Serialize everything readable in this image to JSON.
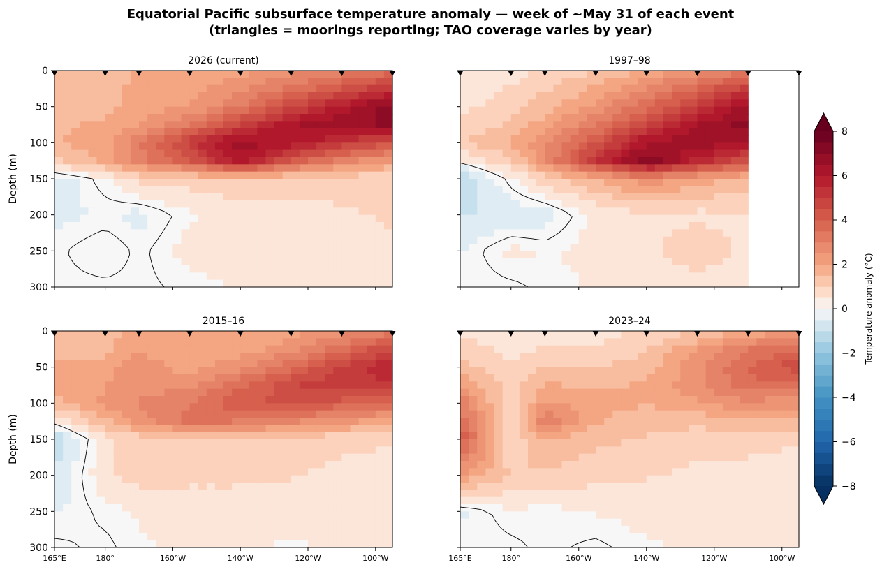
{
  "figure": {
    "title_line1": "Equatorial Pacific subsurface temperature anomaly — week of ~May 31 of each event",
    "title_line2": "(triangles = moorings reporting; TAO coverage varies by year)"
  },
  "chart_data": [
    {
      "type": "heatmap",
      "title": "2026 (current)",
      "xlabel": "",
      "ylabel": "Depth (m)",
      "x_ticks": [
        "165°E",
        "180°",
        "160°W",
        "140°W",
        "120°W",
        "100°W"
      ],
      "y_ticks": [
        "0",
        "50",
        "100",
        "150",
        "200",
        "250",
        "300"
      ],
      "xlim": [
        "165°E",
        "95°W"
      ],
      "ylim": [
        300,
        0
      ],
      "moorings_lon_e": [
        165,
        180,
        190,
        205,
        220,
        235,
        250,
        265
      ],
      "grid": {
        "lon_e": [
          165,
          180,
          190,
          205,
          220,
          235,
          250,
          265
        ],
        "depth_m": [
          0,
          25,
          50,
          75,
          100,
          125,
          150,
          200,
          250,
          300
        ],
        "anomaly_c": [
          [
            1.5,
            1.5,
            1.8,
            1.8,
            2.0,
            2.6,
            3.0,
            3.5
          ],
          [
            1.5,
            1.6,
            1.9,
            2.1,
            2.6,
            3.4,
            4.2,
            5.2
          ],
          [
            1.6,
            1.6,
            1.9,
            2.3,
            3.2,
            4.6,
            6.0,
            7.2
          ],
          [
            1.7,
            1.8,
            2.2,
            3.2,
            4.8,
            6.2,
            6.6,
            6.8
          ],
          [
            1.7,
            2.0,
            3.2,
            5.0,
            6.6,
            6.2,
            5.2,
            4.4
          ],
          [
            1.2,
            1.8,
            3.0,
            4.2,
            6.2,
            4.2,
            3.0,
            2.2
          ],
          [
            -0.6,
            0.2,
            0.9,
            1.0,
            1.2,
            1.0,
            0.9,
            0.8
          ],
          [
            -0.4,
            -0.2,
            -0.4,
            0.2,
            0.5,
            0.5,
            0.7,
            0.8
          ],
          [
            -0.1,
            0.3,
            -0.1,
            0.4,
            0.5,
            0.5,
            0.6,
            0.7
          ],
          [
            -0.1,
            -0.1,
            -0.1,
            0.1,
            0.3,
            0.4,
            0.5,
            0.6
          ]
        ]
      }
    },
    {
      "type": "heatmap",
      "title": "1997–98",
      "xlabel": "",
      "ylabel": "",
      "x_ticks": [
        "165°E",
        "180°",
        "160°W",
        "140°W",
        "120°W",
        "100°W"
      ],
      "y_ticks": [
        "0",
        "50",
        "100",
        "150",
        "200",
        "250",
        "300"
      ],
      "xlim": [
        "165°E",
        "95°W"
      ],
      "ylim": [
        300,
        0
      ],
      "moorings_lon_e": [
        165,
        180,
        190,
        205,
        220,
        235,
        250,
        265
      ],
      "data_extent_lon_e": [
        165,
        250
      ],
      "grid": {
        "lon_e": [
          165,
          180,
          190,
          205,
          220,
          235,
          250
        ],
        "depth_m": [
          0,
          25,
          50,
          75,
          100,
          125,
          150,
          200,
          250,
          300
        ],
        "anomaly_c": [
          [
            0.2,
            0.5,
            0.8,
            1.2,
            1.8,
            2.5,
            3.2
          ],
          [
            0.4,
            0.8,
            1.2,
            1.8,
            2.8,
            3.8,
            5.0
          ],
          [
            0.6,
            1.0,
            1.5,
            2.4,
            3.6,
            5.0,
            6.5
          ],
          [
            0.8,
            1.4,
            2.0,
            3.2,
            4.8,
            6.2,
            7.0
          ],
          [
            1.2,
            1.8,
            2.6,
            4.2,
            6.2,
            6.6,
            6.2
          ],
          [
            0.2,
            1.2,
            2.6,
            5.2,
            7.2,
            5.6,
            4.4
          ],
          [
            -1.4,
            0.2,
            1.0,
            1.8,
            2.6,
            2.0,
            1.6
          ],
          [
            -0.8,
            -0.6,
            -0.5,
            0.4,
            0.7,
            0.6,
            0.7
          ],
          [
            -0.3,
            0.4,
            0.2,
            0.4,
            0.5,
            1.2,
            0.5
          ],
          [
            -0.2,
            -0.1,
            0.1,
            0.3,
            0.4,
            0.4,
            0.4
          ]
        ]
      }
    },
    {
      "type": "heatmap",
      "title": "2015–16",
      "xlabel": "",
      "ylabel": "Depth (m)",
      "x_ticks": [
        "165°E",
        "180°",
        "160°W",
        "140°W",
        "120°W",
        "100°W"
      ],
      "y_ticks": [
        "0",
        "50",
        "100",
        "150",
        "200",
        "250",
        "300"
      ],
      "xlim": [
        "165°E",
        "95°W"
      ],
      "ylim": [
        300,
        0
      ],
      "moorings_lon_e": [
        165,
        180,
        190,
        205,
        220,
        235,
        250,
        265
      ],
      "grid": {
        "lon_e": [
          165,
          180,
          190,
          205,
          220,
          235,
          250,
          265
        ],
        "depth_m": [
          0,
          25,
          50,
          75,
          100,
          125,
          150,
          200,
          250,
          300
        ],
        "anomaly_c": [
          [
            1.2,
            1.6,
            1.8,
            1.8,
            1.8,
            2.0,
            2.5,
            3.0
          ],
          [
            1.5,
            1.6,
            2.2,
            1.8,
            2.0,
            2.5,
            3.5,
            4.8
          ],
          [
            1.8,
            2.0,
            2.6,
            2.0,
            2.6,
            3.6,
            4.8,
            5.8
          ],
          [
            1.9,
            2.2,
            2.6,
            2.6,
            3.6,
            4.6,
            5.2,
            5.0
          ],
          [
            1.6,
            2.4,
            2.8,
            3.2,
            4.2,
            4.4,
            4.0,
            3.6
          ],
          [
            0.2,
            1.6,
            2.4,
            3.4,
            3.2,
            2.8,
            2.4,
            2.0
          ],
          [
            -1.2,
            0.6,
            1.0,
            1.2,
            1.2,
            1.0,
            0.9,
            0.8
          ],
          [
            -0.7,
            0.6,
            1.0,
            0.9,
            0.9,
            0.8,
            0.6,
            0.5
          ],
          [
            -0.3,
            0.1,
            0.3,
            0.4,
            0.4,
            0.4,
            0.4,
            0.4
          ],
          [
            0.1,
            -0.1,
            0.2,
            0.3,
            0.3,
            0.2,
            0.3,
            0.3
          ]
        ]
      }
    },
    {
      "type": "heatmap",
      "title": "2023–24",
      "xlabel": "",
      "ylabel": "",
      "x_ticks": [
        "165°E",
        "180°",
        "160°W",
        "140°W",
        "120°W",
        "100°W"
      ],
      "y_ticks": [
        "0",
        "50",
        "100",
        "150",
        "200",
        "250",
        "300"
      ],
      "xlim": [
        "165°E",
        "95°W"
      ],
      "ylim": [
        300,
        0
      ],
      "moorings_lon_e": [
        165,
        180,
        190,
        205,
        220,
        235,
        250,
        265
      ],
      "grid": {
        "lon_e": [
          165,
          180,
          190,
          205,
          220,
          235,
          250,
          265
        ],
        "depth_m": [
          0,
          25,
          50,
          75,
          100,
          125,
          150,
          200,
          250,
          300
        ],
        "anomaly_c": [
          [
            0.6,
            0.4,
            0.5,
            0.6,
            0.8,
            1.2,
            1.8,
            2.2
          ],
          [
            1.0,
            0.6,
            0.8,
            0.8,
            1.2,
            2.2,
            3.2,
            3.8
          ],
          [
            1.4,
            0.8,
            1.2,
            1.2,
            1.5,
            2.6,
            3.8,
            4.6
          ],
          [
            2.2,
            1.0,
            1.8,
            1.6,
            1.8,
            2.6,
            3.6,
            3.6
          ],
          [
            3.2,
            0.8,
            2.4,
            2.0,
            1.8,
            2.2,
            2.6,
            2.4
          ],
          [
            3.6,
            0.6,
            3.2,
            1.8,
            1.4,
            1.4,
            1.6,
            1.6
          ],
          [
            4.2,
            0.8,
            1.8,
            1.4,
            1.2,
            1.0,
            0.9,
            0.8
          ],
          [
            2.2,
            1.2,
            1.2,
            0.9,
            0.8,
            0.6,
            0.6,
            0.5
          ],
          [
            -0.3,
            0.2,
            0.1,
            0.3,
            0.4,
            0.4,
            0.4,
            0.4
          ],
          [
            -0.2,
            -0.1,
            0.1,
            -0.1,
            0.2,
            0.3,
            0.3,
            0.3
          ]
        ]
      }
    }
  ],
  "colorbar": {
    "label": "Temperature anomaly (°C)",
    "ticks": [
      "−8",
      "−6",
      "−4",
      "−2",
      "0",
      "2",
      "4",
      "6",
      "8"
    ],
    "range": [
      -8,
      8
    ],
    "colormap": "RdBu_r",
    "extend": "both"
  }
}
